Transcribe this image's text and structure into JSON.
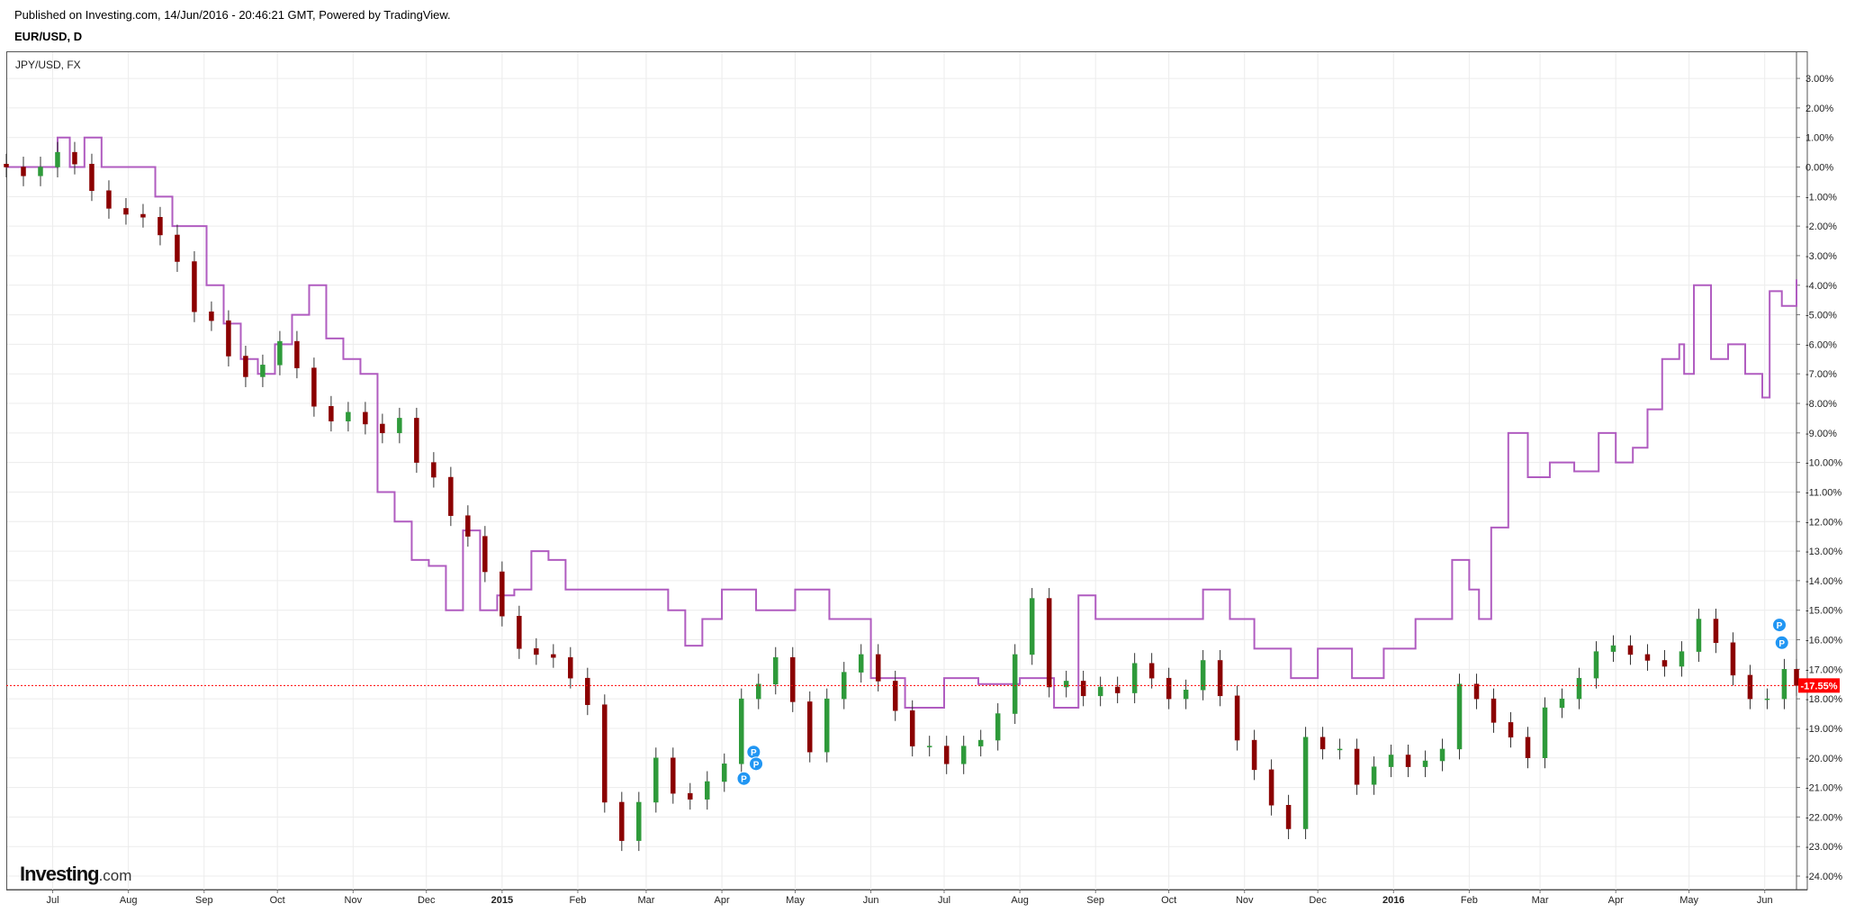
{
  "header": {
    "published": "Published on Investing.com, 14/Jun/2016 - 20:46:21 GMT, Powered by TradingView.",
    "symbol": "EUR/USD, D"
  },
  "logo": {
    "name": "Investing",
    "suffix": ".com"
  },
  "chart_data": {
    "type": "line",
    "title": "",
    "overlay_label": "JPY/USD, FX",
    "xlabel": "",
    "ylabel": "",
    "ylim": [
      -24.5,
      3.5
    ],
    "ytick_values": [
      3,
      2,
      1,
      0,
      -1,
      -2,
      -3,
      -4,
      -5,
      -6,
      -7,
      -8,
      -9,
      -10,
      -11,
      -12,
      -13,
      -14,
      -15,
      -16,
      -17,
      -18,
      -19,
      -20,
      -21,
      -22,
      -23,
      -24
    ],
    "ytick_labels": [
      "3.00%",
      "2.00%",
      "1.00%",
      "0.00%",
      "-1.00%",
      "-2.00%",
      "-3.00%",
      "-4.00%",
      "-5.00%",
      "-6.00%",
      "-7.00%",
      "-8.00%",
      "-9.00%",
      "-10.00%",
      "-11.00%",
      "-12.00%",
      "-13.00%",
      "-14.00%",
      "-15.00%",
      "-16.00%",
      "-17.00%",
      "-18.00%",
      "-19.00%",
      "-20.00%",
      "-21.00%",
      "-22.00%",
      "-23.00%",
      "-24.00%"
    ],
    "xrange": [
      "2014-06-12",
      "2016-06-14"
    ],
    "xticks": [
      {
        "label": "Jul",
        "date": "2014-07-01",
        "bold": false
      },
      {
        "label": "Aug",
        "date": "2014-08-01",
        "bold": false
      },
      {
        "label": "Sep",
        "date": "2014-09-01",
        "bold": false
      },
      {
        "label": "Oct",
        "date": "2014-10-01",
        "bold": false
      },
      {
        "label": "Nov",
        "date": "2014-11-01",
        "bold": false
      },
      {
        "label": "Dec",
        "date": "2014-12-01",
        "bold": false
      },
      {
        "label": "2015",
        "date": "2015-01-01",
        "bold": true
      },
      {
        "label": "Feb",
        "date": "2015-02-01",
        "bold": false
      },
      {
        "label": "Mar",
        "date": "2015-03-01",
        "bold": false
      },
      {
        "label": "Apr",
        "date": "2015-04-01",
        "bold": false
      },
      {
        "label": "May",
        "date": "2015-05-01",
        "bold": false
      },
      {
        "label": "Jun",
        "date": "2015-06-01",
        "bold": false
      },
      {
        "label": "Jul",
        "date": "2015-07-01",
        "bold": false
      },
      {
        "label": "Aug",
        "date": "2015-08-01",
        "bold": false
      },
      {
        "label": "Sep",
        "date": "2015-09-01",
        "bold": false
      },
      {
        "label": "Oct",
        "date": "2015-10-01",
        "bold": false
      },
      {
        "label": "Nov",
        "date": "2015-11-01",
        "bold": false
      },
      {
        "label": "Dec",
        "date": "2015-12-01",
        "bold": false
      },
      {
        "label": "2016",
        "date": "2016-01-01",
        "bold": true
      },
      {
        "label": "Feb",
        "date": "2016-02-01",
        "bold": false
      },
      {
        "label": "Mar",
        "date": "2016-03-01",
        "bold": false
      },
      {
        "label": "Apr",
        "date": "2016-04-01",
        "bold": false
      },
      {
        "label": "May",
        "date": "2016-05-01",
        "bold": false
      },
      {
        "label": "Jun",
        "date": "2016-06-01",
        "bold": false
      }
    ],
    "grid": true,
    "current_value": {
      "label": "-17.55%",
      "value": -17.55,
      "color": "#ff0000"
    },
    "colors": {
      "up": "#2e9a3a",
      "down": "#8b0000",
      "compare": "#b05cc0",
      "marker": "#2196f3"
    },
    "series": [
      {
        "type": "candlestick",
        "x": [
          "2014-06-12",
          "2014-06-19",
          "2014-06-26",
          "2014-07-03",
          "2014-07-10",
          "2014-07-17",
          "2014-07-24",
          "2014-07-31",
          "2014-08-07",
          "2014-08-14",
          "2014-08-21",
          "2014-08-28",
          "2014-09-04",
          "2014-09-11",
          "2014-09-18",
          "2014-09-25",
          "2014-10-02",
          "2014-10-09",
          "2014-10-16",
          "2014-10-23",
          "2014-10-30",
          "2014-11-06",
          "2014-11-13",
          "2014-11-20",
          "2014-11-27",
          "2014-12-04",
          "2014-12-11",
          "2014-12-18",
          "2014-12-25",
          "2015-01-01",
          "2015-01-08",
          "2015-01-15",
          "2015-01-22",
          "2015-01-29",
          "2015-02-05",
          "2015-02-12",
          "2015-02-19",
          "2015-02-26",
          "2015-03-05",
          "2015-03-12",
          "2015-03-19",
          "2015-03-26",
          "2015-04-02",
          "2015-04-09",
          "2015-04-16",
          "2015-04-23",
          "2015-04-30",
          "2015-05-07",
          "2015-05-14",
          "2015-05-21",
          "2015-05-28",
          "2015-06-04",
          "2015-06-11",
          "2015-06-18",
          "2015-06-25",
          "2015-07-02",
          "2015-07-09",
          "2015-07-16",
          "2015-07-23",
          "2015-07-30",
          "2015-08-06",
          "2015-08-13",
          "2015-08-20",
          "2015-08-27",
          "2015-09-03",
          "2015-09-10",
          "2015-09-17",
          "2015-09-24",
          "2015-10-01",
          "2015-10-08",
          "2015-10-15",
          "2015-10-22",
          "2015-10-29",
          "2015-11-05",
          "2015-11-12",
          "2015-11-19",
          "2015-11-26",
          "2015-12-03",
          "2015-12-10",
          "2015-12-17",
          "2015-12-24",
          "2015-12-31",
          "2016-01-07",
          "2016-01-14",
          "2016-01-21",
          "2016-01-28",
          "2016-02-04",
          "2016-02-11",
          "2016-02-18",
          "2016-02-25",
          "2016-03-03",
          "2016-03-10",
          "2016-03-17",
          "2016-03-24",
          "2016-03-31",
          "2016-04-07",
          "2016-04-14",
          "2016-04-21",
          "2016-04-28",
          "2016-05-05",
          "2016-05-12",
          "2016-05-19",
          "2016-05-26",
          "2016-06-02",
          "2016-06-09",
          "2016-06-14"
        ],
        "close": [
          0.0,
          -0.3,
          0.0,
          0.5,
          0.1,
          -0.8,
          -1.4,
          -1.6,
          -1.7,
          -2.3,
          -3.2,
          -4.9,
          -5.2,
          -6.4,
          -7.1,
          -6.7,
          -5.9,
          -6.8,
          -8.1,
          -8.6,
          -8.3,
          -8.7,
          -9.0,
          -8.5,
          -10.0,
          -10.5,
          -11.8,
          -12.5,
          -13.7,
          -15.2,
          -16.3,
          -16.5,
          -16.6,
          -17.3,
          -18.2,
          -21.5,
          -22.8,
          -21.5,
          -20.0,
          -21.2,
          -21.4,
          -20.8,
          -20.2,
          -18.0,
          -17.5,
          -16.6,
          -18.1,
          -19.8,
          -18.0,
          -17.1,
          -16.5,
          -17.4,
          -18.4,
          -19.6,
          -19.6,
          -20.2,
          -19.6,
          -19.4,
          -18.5,
          -16.5,
          -14.6,
          -17.6,
          -17.4,
          -17.9,
          -17.6,
          -17.8,
          -16.8,
          -17.3,
          -18.0,
          -17.7,
          -16.7,
          -17.9,
          -19.4,
          -20.4,
          -21.6,
          -22.4,
          -19.3,
          -19.7,
          -19.7,
          -20.9,
          -20.3,
          -19.9,
          -20.3,
          -20.1,
          -19.7,
          -17.5,
          -18.0,
          -18.8,
          -19.3,
          -20.0,
          -18.3,
          -18.0,
          -17.3,
          -16.4,
          -16.2,
          -16.5,
          -16.7,
          -16.9,
          -16.4,
          -15.3,
          -16.1,
          -17.2,
          -18.0,
          -18.0,
          -17.0,
          -17.55
        ]
      },
      {
        "type": "line",
        "x": [
          "2014-06-12",
          "2014-06-23",
          "2014-07-03",
          "2014-07-08",
          "2014-07-14",
          "2014-07-21",
          "2014-07-28",
          "2014-08-05",
          "2014-08-12",
          "2014-08-19",
          "2014-08-26",
          "2014-09-02",
          "2014-09-09",
          "2014-09-16",
          "2014-09-23",
          "2014-09-30",
          "2014-10-07",
          "2014-10-14",
          "2014-10-21",
          "2014-10-28",
          "2014-11-04",
          "2014-11-11",
          "2014-11-18",
          "2014-11-25",
          "2014-12-02",
          "2014-12-09",
          "2014-12-16",
          "2014-12-23",
          "2014-12-30",
          "2015-01-06",
          "2015-01-13",
          "2015-01-20",
          "2015-01-27",
          "2015-02-03",
          "2015-02-10",
          "2015-02-17",
          "2015-03-01",
          "2015-03-10",
          "2015-03-17",
          "2015-03-24",
          "2015-04-01",
          "2015-04-15",
          "2015-05-01",
          "2015-05-15",
          "2015-06-01",
          "2015-06-15",
          "2015-07-01",
          "2015-07-15",
          "2015-08-01",
          "2015-08-15",
          "2015-08-25",
          "2015-09-01",
          "2015-09-15",
          "2015-10-01",
          "2015-10-15",
          "2015-10-26",
          "2015-11-05",
          "2015-11-20",
          "2015-12-01",
          "2015-12-15",
          "2015-12-28",
          "2016-01-10",
          "2016-01-25",
          "2016-02-01",
          "2016-02-05",
          "2016-02-10",
          "2016-02-17",
          "2016-02-25",
          "2016-03-05",
          "2016-03-15",
          "2016-03-25",
          "2016-04-01",
          "2016-04-08",
          "2016-04-14",
          "2016-04-20",
          "2016-04-27",
          "2016-04-29",
          "2016-05-03",
          "2016-05-10",
          "2016-05-17",
          "2016-05-24",
          "2016-05-31",
          "2016-06-03",
          "2016-06-08",
          "2016-06-14"
        ],
        "values": [
          0.0,
          0.0,
          1.0,
          0.0,
          1.0,
          0.0,
          0.0,
          0.0,
          -1.0,
          -2.0,
          -2.0,
          -4.0,
          -5.3,
          -6.5,
          -7.0,
          -6.0,
          -5.0,
          -4.0,
          -5.8,
          -6.5,
          -7.0,
          -11.0,
          -12.0,
          -13.3,
          -13.5,
          -15.0,
          -12.3,
          -15.0,
          -14.5,
          -14.3,
          -13.0,
          -13.3,
          -14.3,
          -14.3,
          -14.3,
          -14.3,
          -14.3,
          -15.0,
          -16.2,
          -15.3,
          -14.3,
          -15.0,
          -14.3,
          -15.3,
          -17.3,
          -18.3,
          -17.3,
          -17.5,
          -17.3,
          -18.3,
          -14.5,
          -15.3,
          -15.3,
          -15.3,
          -14.3,
          -15.3,
          -16.3,
          -17.3,
          -16.3,
          -17.3,
          -16.3,
          -15.3,
          -13.3,
          -14.3,
          -15.3,
          -12.2,
          -9.0,
          -10.5,
          -10.0,
          -10.3,
          -9.0,
          -10.0,
          -9.5,
          -8.2,
          -6.5,
          -6.0,
          -7.0,
          -4.0,
          -6.5,
          -6.0,
          -7.0,
          -7.8,
          -4.2,
          -4.7,
          -3.8
        ]
      }
    ],
    "markers": [
      {
        "label": "P",
        "date": "2015-04-10",
        "value": -20.7
      },
      {
        "label": "P",
        "date": "2015-04-14",
        "value": -19.8
      },
      {
        "label": "P",
        "date": "2015-04-15",
        "value": -20.2
      },
      {
        "label": "P",
        "date": "2016-06-07",
        "value": -15.5
      },
      {
        "label": "P",
        "date": "2016-06-08",
        "value": -16.1
      }
    ]
  }
}
